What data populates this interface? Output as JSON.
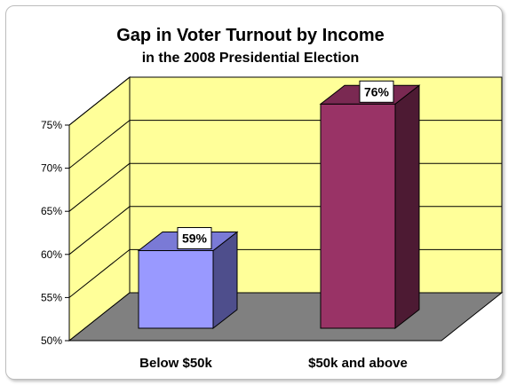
{
  "chart_data": {
    "type": "bar",
    "title": "Gap in Voter Turnout by Income",
    "subtitle": "in the 2008 Presidential Election",
    "categories": [
      "Below $50k",
      "$50k and above"
    ],
    "values": [
      59,
      76
    ],
    "data_labels": [
      "59%",
      "76%"
    ],
    "ylim": [
      50,
      75
    ],
    "yticks": [
      50,
      55,
      60,
      65,
      70,
      75
    ],
    "ytick_labels": [
      "50%",
      "55%",
      "60%",
      "65%",
      "70%",
      "75%"
    ],
    "grid": true,
    "three_d": true,
    "legend": "none",
    "colors": {
      "wall": "#ffff99",
      "floor": "#808080",
      "bar1_front": "#9999ff",
      "bar1_side": "#4e4e8c",
      "bar1_top": "#7a7ad6",
      "bar2_front": "#993366",
      "bar2_side": "#4d1a33",
      "bar2_top": "#7a2952"
    }
  }
}
